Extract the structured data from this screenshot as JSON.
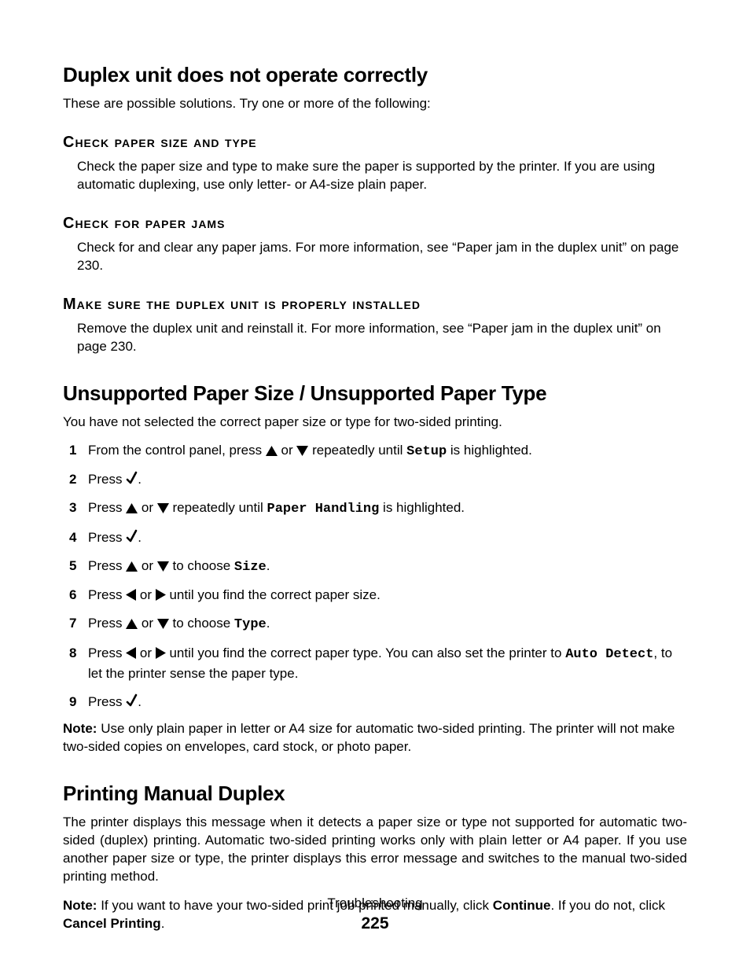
{
  "icons": {
    "up": "<svg class=\"glyph\" width=\"15\" height=\"13\" viewBox=\"0 0 15 13\"><polygon points=\"7.5,0 15,13 0,13\" fill=\"#000\"/></svg>",
    "down": "<svg class=\"glyph\" width=\"15\" height=\"13\" viewBox=\"0 0 15 13\"><polygon points=\"0,0 15,0 7.5,13\" fill=\"#000\"/></svg>",
    "left": "<svg class=\"glyph\" width=\"13\" height=\"15\" viewBox=\"0 0 13 15\"><polygon points=\"13,0 13,15 0,7.5\" fill=\"#000\"/></svg>",
    "right": "<svg class=\"glyph\" width=\"13\" height=\"15\" viewBox=\"0 0 13 15\"><polygon points=\"0,0 13,7.5 0,15\" fill=\"#000\"/></svg>",
    "check": "<svg class=\"glyph\" width=\"15\" height=\"18\" viewBox=\"0 0 15 18\"><path d=\"M2 11 L6 15 L13 2\" stroke=\"#000\" stroke-width=\"2.6\" fill=\"none\" stroke-linecap=\"round\" stroke-linejoin=\"round\"/></svg>"
  },
  "section1": {
    "title": "Duplex unit does not operate correctly",
    "intro": "These are possible solutions. Try one or more of the following:",
    "subs": [
      {
        "heading": "Check paper size and type",
        "body": "Check the paper size and type to make sure the paper is supported by the printer. If you are using automatic duplexing, use only letter- or A4-size plain paper."
      },
      {
        "heading": "Check for paper jams",
        "body": "Check for and clear any paper jams. For more information, see “Paper jam in the duplex unit” on page 230."
      },
      {
        "heading": "Make sure the duplex unit is properly installed",
        "body": "Remove the duplex unit and reinstall it. For more information, see “Paper jam in the duplex unit” on page 230."
      }
    ]
  },
  "section2": {
    "title": "Unsupported Paper Size / Unsupported Paper Type",
    "intro": "You have not selected the correct paper size or type for two-sided printing.",
    "steps": [
      "From the control panel, press {up} or {down} repeatedly until <span class=\"mono\">Setup</span> is highlighted.",
      "Press {check}.",
      "Press {up} or {down} repeatedly until <span class=\"mono\">Paper Handling</span> is highlighted.",
      "Press {check}.",
      "Press {up} or {down} to choose <span class=\"mono\">Size</span>.",
      "Press {left} or {right} until you find the correct paper size.",
      "Press {up} or {down} to choose <span class=\"mono\">Type</span>.",
      "Press {left} or {right} until you find the correct paper type. You can also set the printer to <span class=\"mono\">Auto Detect</span>, to let the printer sense the paper type.",
      "Press {check}."
    ],
    "note_label": "Note:",
    "note": "Use only plain paper in letter or A4 size for automatic two-sided printing. The printer will not make two-sided copies on envelopes, card stock, or photo paper."
  },
  "section3": {
    "title": "Printing Manual Duplex",
    "body": "The printer displays this message when it detects a paper size or type not supported for automatic two-sided (duplex) printing. Automatic two-sided printing works only with plain letter or A4 paper. If you use another paper size or type, the printer displays this error message and switches to the manual two-sided printing method.",
    "note_label": "Note:",
    "note": "If you want to have your two-sided print job printed manually, click <span class=\"bold\">Continue</span>. If you do not, click <span class=\"bold\">Cancel Printing</span>."
  },
  "footer": {
    "section": "Troubleshooting",
    "page": "225"
  }
}
